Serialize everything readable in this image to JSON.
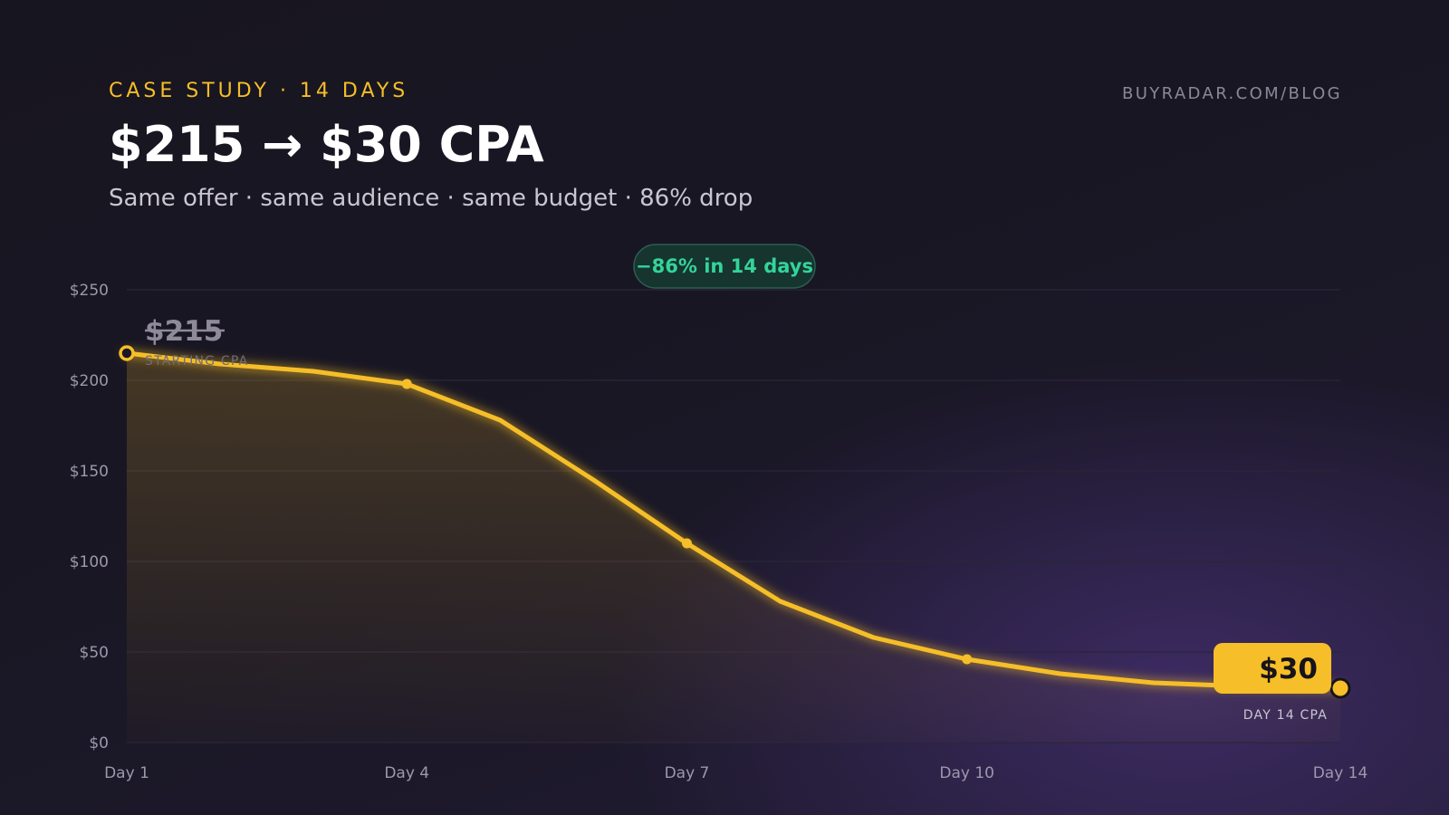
{
  "header": {
    "eyebrow": "CASE STUDY · 14 DAYS",
    "title": "$215 → $30 CPA",
    "subtitle": "Same offer · same audience · same budget · 86% drop",
    "source": "BUYRADAR.COM/BLOG"
  },
  "colors": {
    "accent": "#f6be28",
    "badge_text": "#34d39a",
    "badge_bg": "#16352f",
    "grid": "#2a2638",
    "tick_text": "#9d98aa"
  },
  "chart_data": {
    "type": "line",
    "title": "$215 → $30 CPA",
    "xlabel": "",
    "ylabel": "",
    "x": [
      1,
      2,
      3,
      4,
      5,
      6,
      7,
      8,
      9,
      10,
      11,
      12,
      13,
      14
    ],
    "xlim": [
      1,
      14
    ],
    "series": [
      {
        "values": [
          215,
          209,
          205,
          198,
          178,
          145,
          110,
          78,
          58,
          46,
          38,
          33,
          31,
          30
        ]
      }
    ],
    "marked_days": [
      1,
      4,
      7,
      10,
      14
    ],
    "ylim": [
      0,
      250
    ],
    "y_ticks": [
      0,
      50,
      100,
      150,
      200,
      250
    ],
    "y_tick_labels": [
      "$0",
      "$50",
      "$100",
      "$150",
      "$200",
      "$250"
    ],
    "x_ticks": [
      1,
      4,
      7,
      10,
      14
    ],
    "x_tick_labels": [
      "Day 1",
      "Day 4",
      "Day 7",
      "Day 10",
      "Day 14"
    ],
    "grid": true,
    "area_fill": true,
    "annotations": {
      "change_badge": "−86% in 14 days",
      "start_value": "$215",
      "start_caption": "STARTING CPA",
      "end_value": "$30",
      "end_caption": "DAY 14 CPA"
    }
  }
}
